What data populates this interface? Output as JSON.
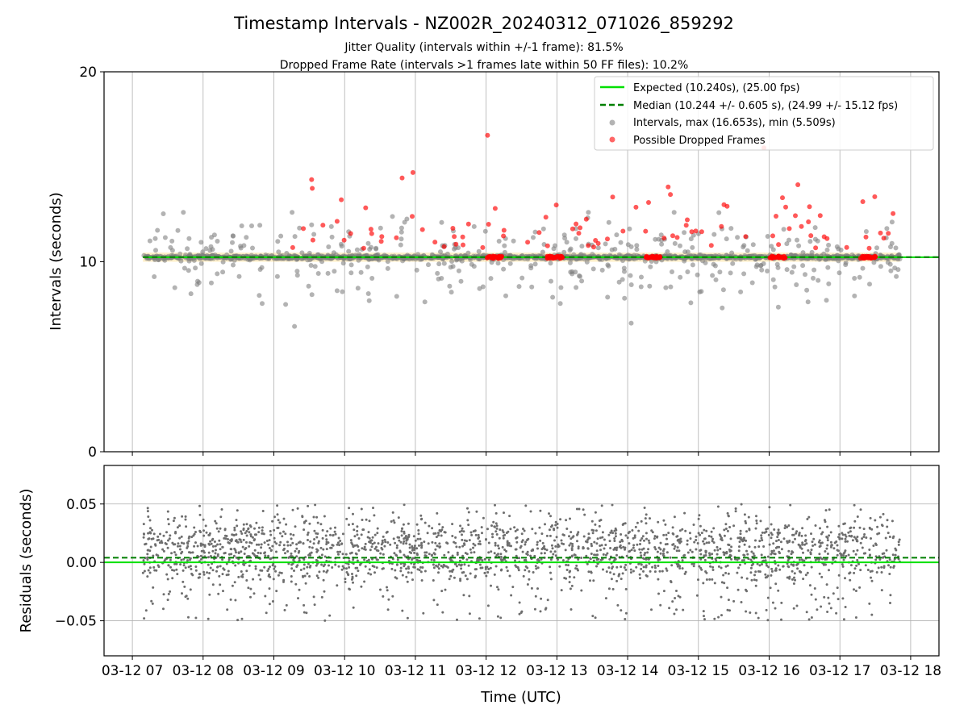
{
  "chart_data": {
    "type": "scatter",
    "title": "Timestamp Intervals - NZ002R_20240312_071026_859292",
    "subtitle_1": "Jitter Quality (intervals within +/-1 frame): 81.5%",
    "subtitle_2": "Dropped Frame Rate (intervals >1 frames late within 50 FF files): 10.2%",
    "xlabel": "Time (UTC)",
    "x_tick_labels": [
      "03-12 07",
      "03-12 08",
      "03-12 09",
      "03-12 10",
      "03-12 11",
      "03-12 12",
      "03-12 13",
      "03-12 14",
      "03-12 15",
      "03-12 16",
      "03-12 17",
      "03-12 18"
    ],
    "x_range_hours": [
      6.6,
      18.4
    ],
    "data_time_span_hours": [
      7.15,
      17.85
    ],
    "top_panel": {
      "ylabel": "Intervals (seconds)",
      "ylim": [
        0,
        20
      ],
      "y_ticks": [
        "0",
        "10",
        "20"
      ],
      "grid": "vertical",
      "legend_position": "top-right",
      "legend": [
        "Expected (10.240s), (25.00 fps)",
        "Median (10.244 +/- 0.605 s), (24.99 +/- 15.12 fps)",
        "Intervals, max (16.653s), min (5.509s)",
        "Possible Dropped Frames"
      ],
      "expected_interval": 10.24,
      "median_interval": 10.244,
      "max_interval": 16.653,
      "min_interval": 5.509,
      "band_low": 10.0,
      "band_high": 10.48,
      "dropped_frame_clusters_hours": [
        12.12,
        12.97,
        14.37,
        16.12,
        17.4
      ]
    },
    "bottom_panel": {
      "ylabel": "Residuals (seconds)",
      "ylim": [
        -0.08,
        0.083
      ],
      "y_ticks": [
        "0.05",
        "0.00",
        "−0.05"
      ],
      "grid": "both",
      "zero_line": 0.0,
      "median_residual": 0.004
    },
    "colors": {
      "expected": "#00e000",
      "median": "#007f00",
      "intervals": "#808080",
      "dropped": "#ff0000",
      "band": "#ffd060",
      "residuals": "#6e6e6e"
    }
  }
}
